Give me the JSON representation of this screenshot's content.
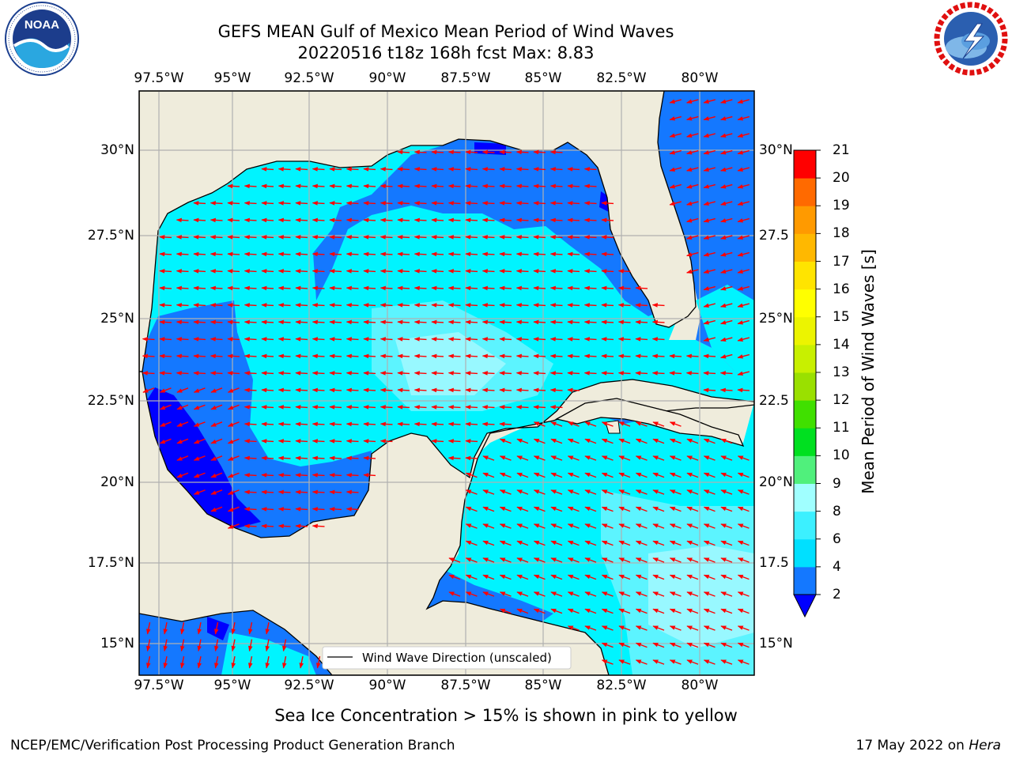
{
  "header": {
    "title_line1": "GEFS MEAN Gulf of Mexico Mean Period of Wind Waves",
    "title_line2": "20220516 t18z 168h fcst   Max: 8.83"
  },
  "logos": {
    "left": {
      "name": "NOAA",
      "ring_text": "NATIONAL OCEANIC AND ATMOSPHERIC ADMINISTRATION · U.S. DEPARTMENT OF COMMERCE"
    },
    "right": {
      "name": "NATIONAL WEATHER SERVICE"
    }
  },
  "map": {
    "lon_labels": [
      "97.5°W",
      "95°W",
      "92.5°W",
      "90°W",
      "87.5°W",
      "85°W",
      "82.5°W",
      "80°W"
    ],
    "lat_labels": [
      "30°N",
      "27.5°N",
      "25°N",
      "22.5°N",
      "20°N",
      "17.5°N",
      "15°N"
    ],
    "right_lat_labels": [
      "30°N",
      "27.5",
      "25°N",
      "22.5",
      "20°N",
      "17.5",
      "15°N"
    ],
    "legend_label": "Wind Wave Direction (unscaled)",
    "colors": {
      "land": "#efecdc",
      "arrow": "#ff0000",
      "grid": "#b0b0b0"
    }
  },
  "colorbar": {
    "title": "Mean Period of Wind Waves [s]",
    "ticks": [
      "2",
      "4",
      "6",
      "8",
      "9",
      "10",
      "11",
      "12",
      "13",
      "14",
      "15",
      "16",
      "17",
      "18",
      "19",
      "20",
      "21"
    ],
    "colors": [
      "#1478ff",
      "#00e0ff",
      "#3cf0ff",
      "#a0ffff",
      "#50f07c",
      "#00e020",
      "#40e000",
      "#9ae000",
      "#c8f000",
      "#ecf400",
      "#ffff00",
      "#ffe400",
      "#ffb800",
      "#ff9a00",
      "#ff6a00",
      "#ff3800",
      "#ff0000"
    ],
    "under_color": "#0000ff"
  },
  "notes": {
    "sea_ice": "Sea Ice Concentration > 15% is shown in pink to yellow"
  },
  "footer": {
    "left": "NCEP/EMC/Verification Post Processing Product Generation Branch",
    "date": "17 May 2022 on ",
    "host": "Hera"
  }
}
